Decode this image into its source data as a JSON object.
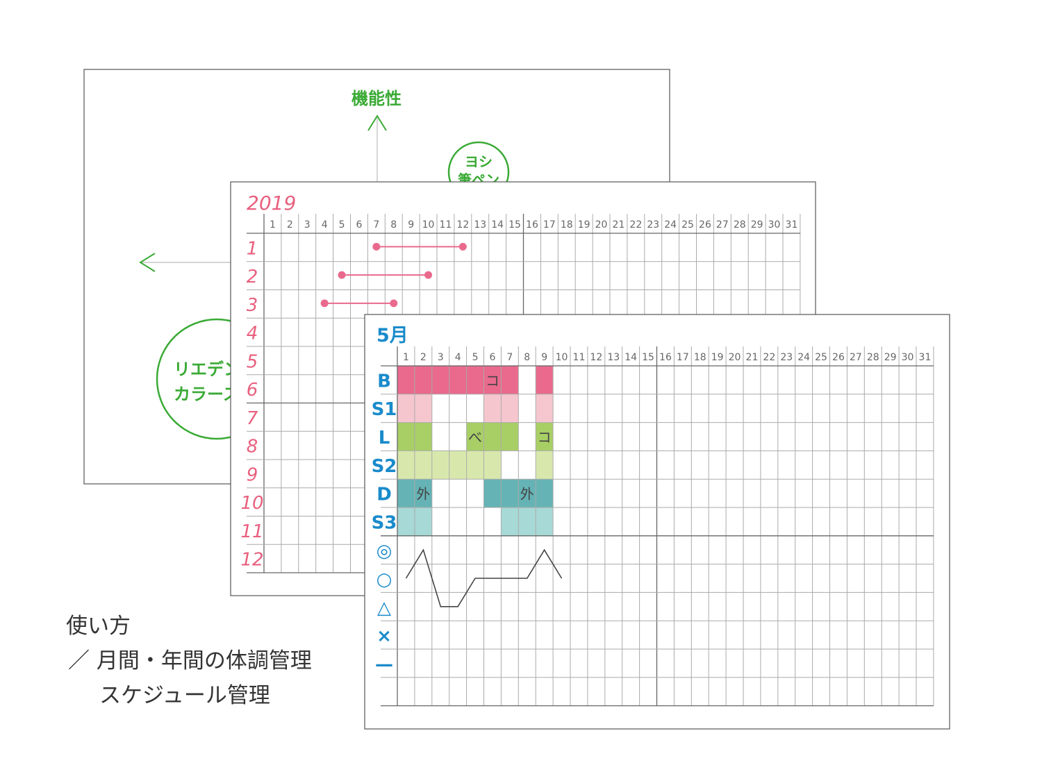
{
  "colors": {
    "green_accent": "#3aaa35",
    "year_pink": "#e8607e",
    "month_blue": "#1a8bcb",
    "line": "#444444"
  },
  "back_sheet": {
    "axis_label": "機能性",
    "circle_top_text": [
      "ヨシ",
      "筆ペン"
    ],
    "circle_left_text": [
      "リエデン",
      "カラース"
    ]
  },
  "yearly": {
    "title": "2019",
    "days": [
      1,
      2,
      3,
      4,
      5,
      6,
      7,
      8,
      9,
      10,
      11,
      12,
      13,
      14,
      15,
      16,
      17,
      18,
      19,
      20,
      21,
      22,
      23,
      24,
      25,
      26,
      27,
      28,
      29,
      30,
      31
    ],
    "months": [
      "1",
      "2",
      "3",
      "4",
      "5",
      "6",
      "7",
      "8",
      "9",
      "10",
      "11",
      "12"
    ],
    "ranges": [
      {
        "month": 1,
        "start": 7,
        "end": 12
      },
      {
        "month": 2,
        "start": 5,
        "end": 10
      },
      {
        "month": 3,
        "start": 4,
        "end": 8
      }
    ]
  },
  "monthly": {
    "title": "5月",
    "days": [
      1,
      2,
      3,
      4,
      5,
      6,
      7,
      8,
      9,
      10,
      11,
      12,
      13,
      14,
      15,
      16,
      17,
      18,
      19,
      20,
      21,
      22,
      23,
      24,
      25,
      26,
      27,
      28,
      29,
      30,
      31
    ],
    "rows": [
      {
        "label": "B",
        "color": "#e96a8d",
        "filled": [
          1,
          2,
          3,
          4,
          5,
          6,
          7,
          9
        ],
        "marks": [
          {
            "day": 6,
            "text": "コ"
          }
        ]
      },
      {
        "label": "S1",
        "color": "#f6c6cf",
        "filled": [
          1,
          2,
          6,
          7,
          9
        ],
        "marks": []
      },
      {
        "label": "L",
        "color": "#a8cf65",
        "filled": [
          1,
          2,
          5,
          6,
          7,
          9
        ],
        "marks": [
          {
            "day": 5,
            "text": "べ"
          },
          {
            "day": 9,
            "text": "コ"
          }
        ]
      },
      {
        "label": "S2",
        "color": "#d8e8ad",
        "filled": [
          1,
          2,
          3,
          4,
          5,
          6,
          9
        ],
        "marks": []
      },
      {
        "label": "D",
        "color": "#65b3b5",
        "filled": [
          1,
          2,
          6,
          7,
          8,
          9
        ],
        "marks": [
          {
            "day": 2,
            "text": "外"
          },
          {
            "day": 8,
            "text": "外"
          }
        ]
      },
      {
        "label": "S3",
        "color": "#a7d9d6",
        "filled": [
          1,
          2,
          7,
          8,
          9
        ],
        "marks": []
      },
      {
        "label": "◎"
      },
      {
        "label": "○"
      },
      {
        "label": "△"
      },
      {
        "label": "×"
      },
      {
        "label": "—"
      },
      {
        "label": ""
      }
    ],
    "condition": [
      {
        "day": 1,
        "level": "○"
      },
      {
        "day": 2,
        "level": "◎"
      },
      {
        "day": 3,
        "level": "△"
      },
      {
        "day": 4,
        "level": "△"
      },
      {
        "day": 5,
        "level": "○"
      },
      {
        "day": 6,
        "level": "○"
      },
      {
        "day": 7,
        "level": "○"
      },
      {
        "day": 8,
        "level": "○"
      },
      {
        "day": 9,
        "level": "◎"
      },
      {
        "day": 10,
        "level": "○"
      }
    ]
  },
  "caption": {
    "title": "使い方",
    "line1": "／ 月間・年間の体調管理",
    "line2": "スケジュール管理"
  }
}
